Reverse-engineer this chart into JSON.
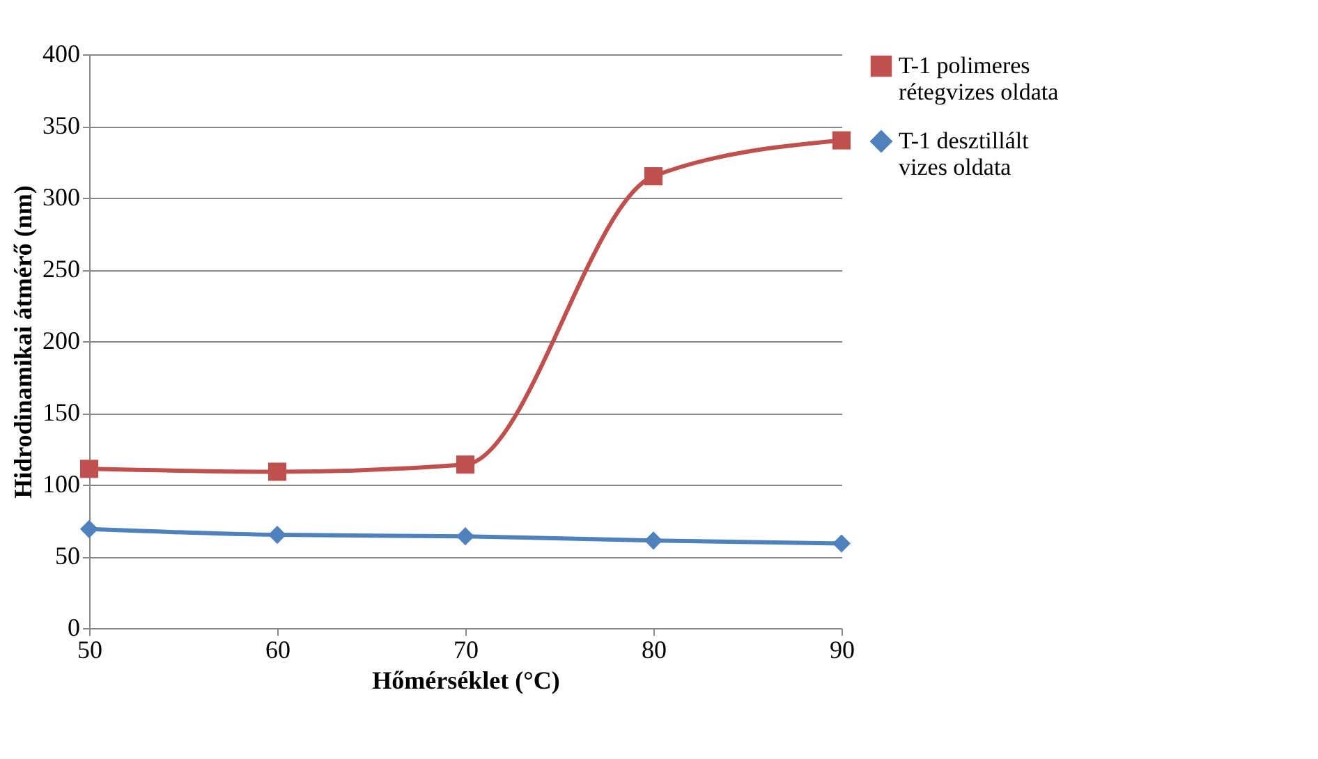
{
  "chart_data": {
    "type": "line",
    "xlabel": "Hőmérséklet (°C)",
    "ylabel": "Hidrodinamikai átmérő (nm)",
    "x": [
      50,
      60,
      70,
      80,
      90
    ],
    "series": [
      {
        "name": "T-1 polimeres rétegvizes oldata",
        "color": "#c0504d",
        "marker": "square",
        "values": [
          111,
          109,
          114,
          315,
          340
        ]
      },
      {
        "name": "T-1 desztillált vizes oldata",
        "color": "#4f81bd",
        "marker": "diamond",
        "values": [
          69,
          65,
          64,
          61,
          59
        ]
      }
    ],
    "xlim": [
      50,
      90
    ],
    "xticks": [
      50,
      60,
      70,
      80,
      90
    ],
    "ylim": [
      0,
      400
    ],
    "yticks": [
      0,
      50,
      100,
      150,
      200,
      250,
      300,
      350,
      400
    ],
    "grid": "y",
    "legend": "right",
    "line_style": "solid"
  }
}
